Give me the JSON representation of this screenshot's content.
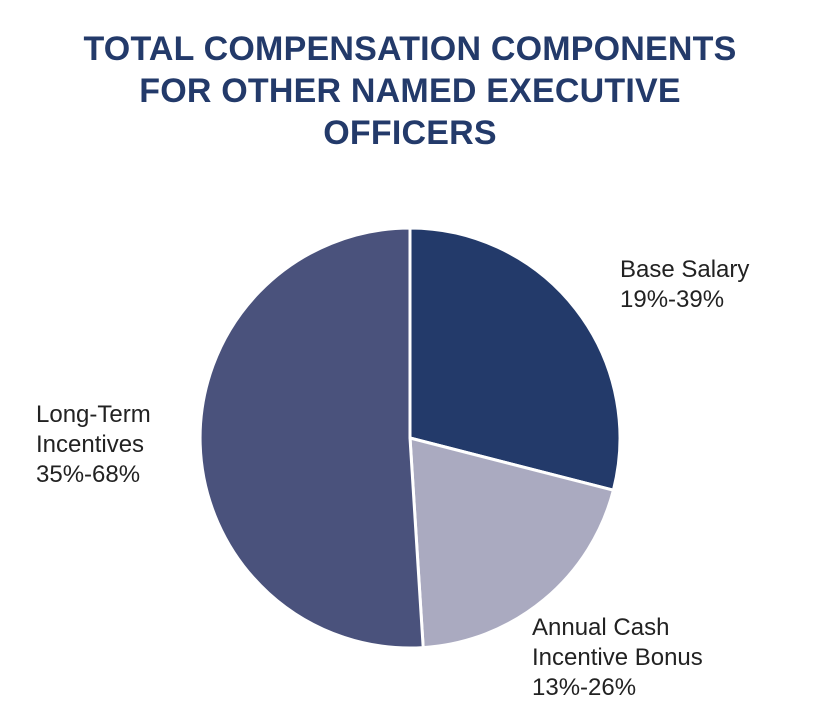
{
  "chart_data": {
    "type": "pie",
    "title_lines": [
      "TOTAL COMPENSATION COMPONENTS",
      "FOR OTHER NAMED EXECUTIVE",
      "OFFICERS"
    ],
    "title": "TOTAL COMPENSATION COMPONENTS FOR OTHER NAMED EXECUTIVE OFFICERS",
    "slices": [
      {
        "name": "Base Salary",
        "range": "19%-39%",
        "value": 29,
        "color": "#233a6a"
      },
      {
        "name": "Annual Cash Incentive Bonus",
        "name_lines": [
          "Annual Cash",
          "Incentive Bonus"
        ],
        "range": "13%-26%",
        "value": 20,
        "color": "#aaaac0"
      },
      {
        "name": "Long-Term Incentives",
        "name_lines": [
          "Long-Term",
          "Incentives"
        ],
        "range": "35%-68%",
        "value": 51,
        "color": "#4a527c"
      }
    ]
  }
}
